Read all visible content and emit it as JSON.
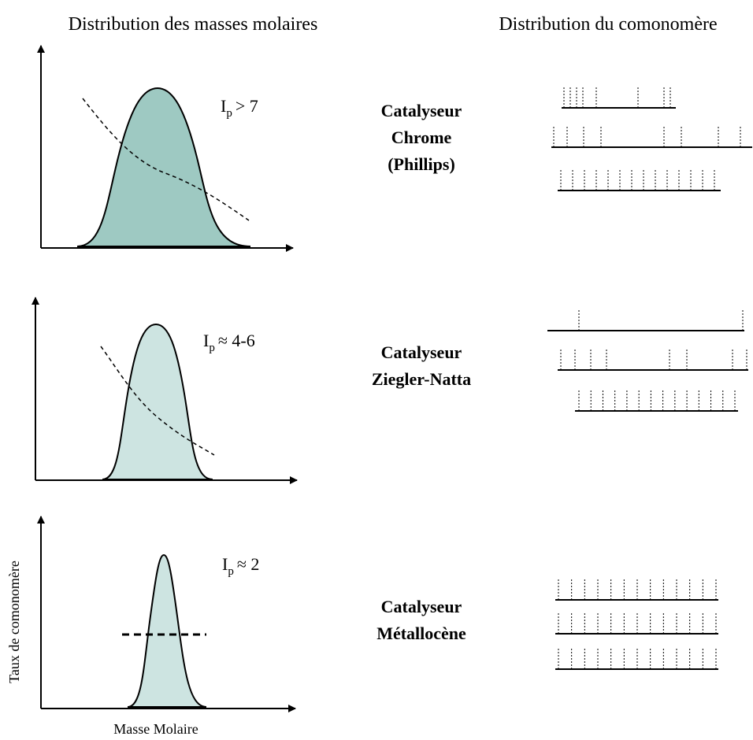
{
  "header": {
    "left": "Distribution des masses molaires",
    "right": "Distribution du comonomère"
  },
  "panels": [
    {
      "index": {
        "symbol": "I",
        "subscript": "p",
        "relation": "> 7"
      },
      "catalyst": [
        "Catalyseur",
        "Chrome",
        "(Phillips)"
      ]
    },
    {
      "index": {
        "symbol": "I",
        "subscript": "p",
        "relation": "≈ 4-6"
      },
      "catalyst": [
        "Catalyseur",
        "Ziegler-Natta"
      ]
    },
    {
      "index": {
        "symbol": "I",
        "subscript": "p",
        "relation": "≈ 2"
      },
      "catalyst": [
        "Catalyseur",
        "Métallocène"
      ]
    }
  ],
  "axes": {
    "y_label": "Taux de comonomère",
    "x_label": "Masse Molaire"
  }
}
